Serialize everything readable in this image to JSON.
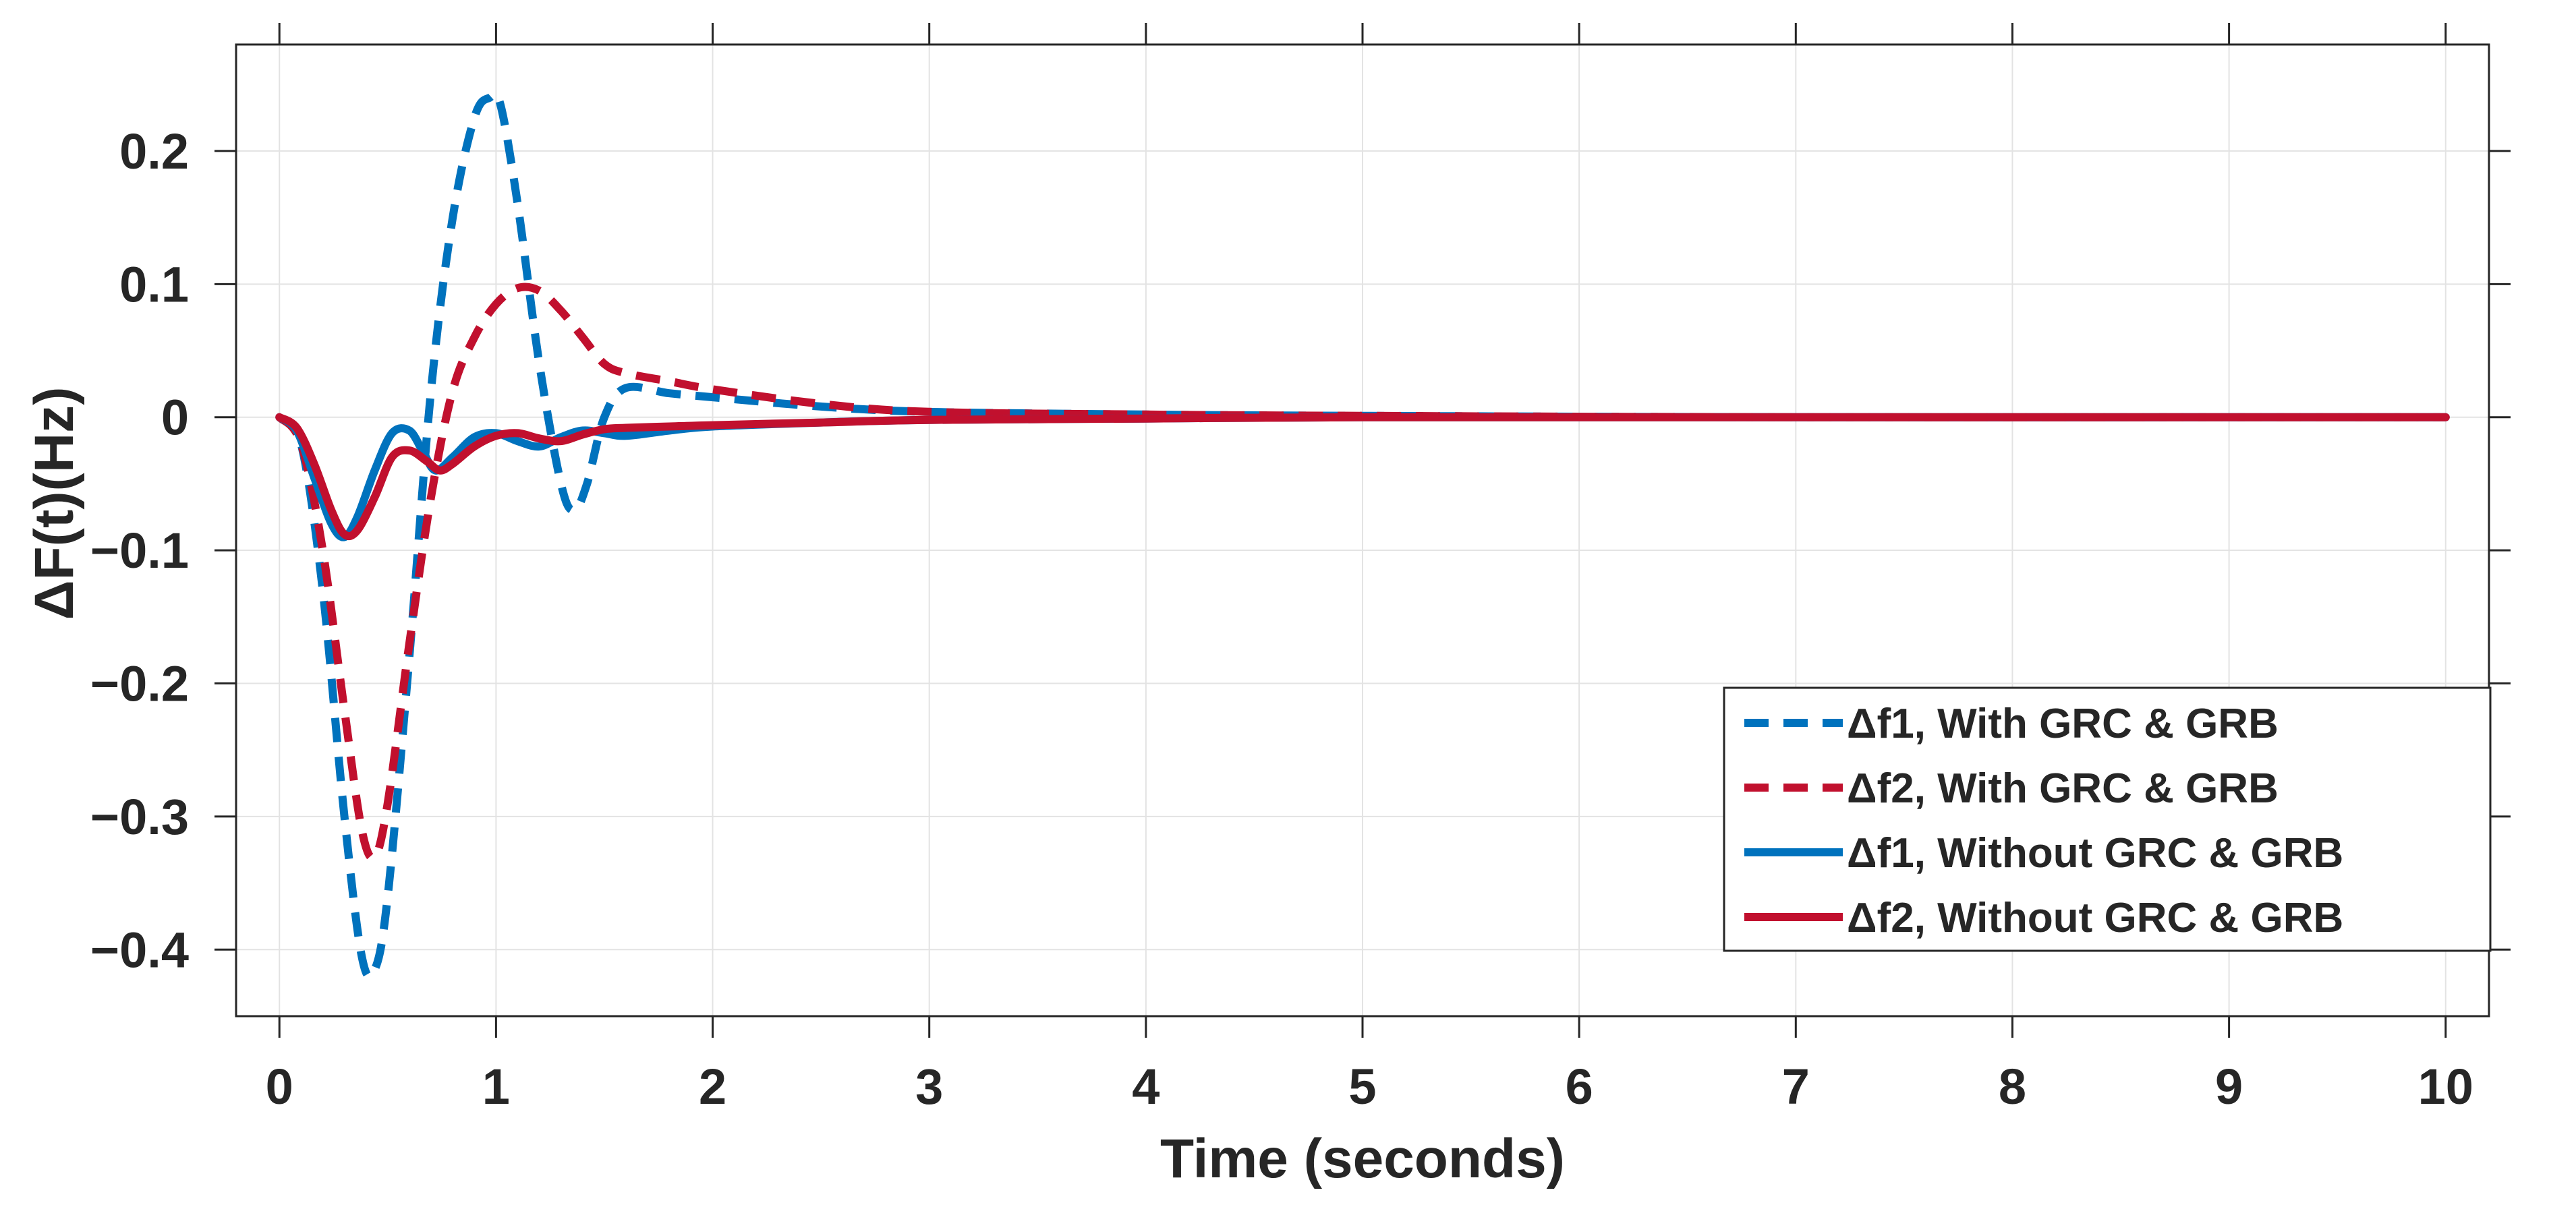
{
  "chart_data": {
    "type": "line",
    "title": "",
    "xlabel": "Time (seconds)",
    "ylabel": "ΔF(t)(Hz)",
    "xlim": [
      -0.2,
      10.2
    ],
    "ylim": [
      -0.45,
      0.28
    ],
    "xticks": [
      0,
      1,
      2,
      3,
      4,
      5,
      6,
      7,
      8,
      9,
      10
    ],
    "xtick_labels": [
      "0",
      "1",
      "2",
      "3",
      "4",
      "5",
      "6",
      "7",
      "8",
      "9",
      "10"
    ],
    "yticks": [
      -0.4,
      -0.3,
      -0.2,
      -0.1,
      0,
      0.1,
      0.2
    ],
    "ytick_labels": [
      "−0.4",
      "−0.3",
      "−0.2",
      "−0.1",
      "0",
      "0.1",
      "0.2"
    ],
    "grid": true,
    "legend_position": "bottom-right",
    "series": [
      {
        "name": "Δf1, With GRC & GRB",
        "color": "#0072BD",
        "style": "dashed",
        "x": [
          0,
          0.1,
          0.2,
          0.3,
          0.38,
          0.44,
          0.5,
          0.6,
          0.7,
          0.8,
          0.9,
          0.97,
          1.02,
          1.1,
          1.2,
          1.3,
          1.36,
          1.42,
          1.5,
          1.6,
          1.8,
          2.0,
          2.5,
          3.0,
          4.0,
          5.0,
          7.0,
          10.0
        ],
        "y": [
          0,
          -0.02,
          -0.13,
          -0.3,
          -0.405,
          -0.415,
          -0.36,
          -0.18,
          0.02,
          0.15,
          0.225,
          0.24,
          0.235,
          0.16,
          0.04,
          -0.05,
          -0.07,
          -0.05,
          0.0,
          0.022,
          0.018,
          0.015,
          0.008,
          0.004,
          0.002,
          0.001,
          0.0,
          0.0
        ]
      },
      {
        "name": "Δf2, With GRC & GRB",
        "color": "#C1102E",
        "style": "dashed",
        "x": [
          0,
          0.1,
          0.2,
          0.3,
          0.38,
          0.44,
          0.5,
          0.6,
          0.7,
          0.8,
          0.9,
          1.0,
          1.1,
          1.2,
          1.3,
          1.4,
          1.5,
          1.6,
          1.8,
          2.0,
          2.5,
          3.0,
          4.0,
          5.0,
          7.0,
          10.0
        ],
        "y": [
          0,
          -0.02,
          -0.1,
          -0.22,
          -0.31,
          -0.33,
          -0.29,
          -0.17,
          -0.06,
          0.02,
          0.06,
          0.085,
          0.097,
          0.095,
          0.08,
          0.06,
          0.04,
          0.033,
          0.027,
          0.021,
          0.01,
          0.004,
          0.002,
          0.001,
          0.0,
          0.0
        ]
      },
      {
        "name": "Δf1, Without GRC & GRB",
        "color": "#0072BD",
        "style": "solid",
        "x": [
          0,
          0.08,
          0.16,
          0.24,
          0.3,
          0.36,
          0.44,
          0.52,
          0.6,
          0.66,
          0.72,
          0.8,
          0.9,
          1.0,
          1.1,
          1.2,
          1.3,
          1.4,
          1.5,
          1.6,
          1.8,
          2.0,
          2.5,
          3.0,
          4.0,
          5.0,
          7.0,
          10.0
        ],
        "y": [
          0,
          -0.01,
          -0.045,
          -0.08,
          -0.09,
          -0.075,
          -0.04,
          -0.012,
          -0.01,
          -0.025,
          -0.04,
          -0.03,
          -0.015,
          -0.012,
          -0.018,
          -0.022,
          -0.015,
          -0.01,
          -0.012,
          -0.014,
          -0.01,
          -0.007,
          -0.004,
          -0.002,
          -0.001,
          0.0,
          0.0,
          0.0
        ]
      },
      {
        "name": "Δf2, Without GRC & GRB",
        "color": "#C1102E",
        "style": "solid",
        "x": [
          0,
          0.08,
          0.16,
          0.24,
          0.3,
          0.36,
          0.44,
          0.52,
          0.6,
          0.68,
          0.74,
          0.8,
          0.9,
          1.0,
          1.1,
          1.2,
          1.3,
          1.4,
          1.5,
          1.6,
          1.8,
          2.0,
          2.5,
          3.0,
          4.0,
          5.0,
          7.0,
          10.0
        ],
        "y": [
          0,
          -0.008,
          -0.035,
          -0.07,
          -0.088,
          -0.085,
          -0.06,
          -0.03,
          -0.025,
          -0.033,
          -0.04,
          -0.035,
          -0.022,
          -0.014,
          -0.012,
          -0.016,
          -0.018,
          -0.013,
          -0.009,
          -0.008,
          -0.007,
          -0.006,
          -0.004,
          -0.002,
          -0.001,
          0.0,
          0.0,
          0.0
        ]
      }
    ]
  }
}
